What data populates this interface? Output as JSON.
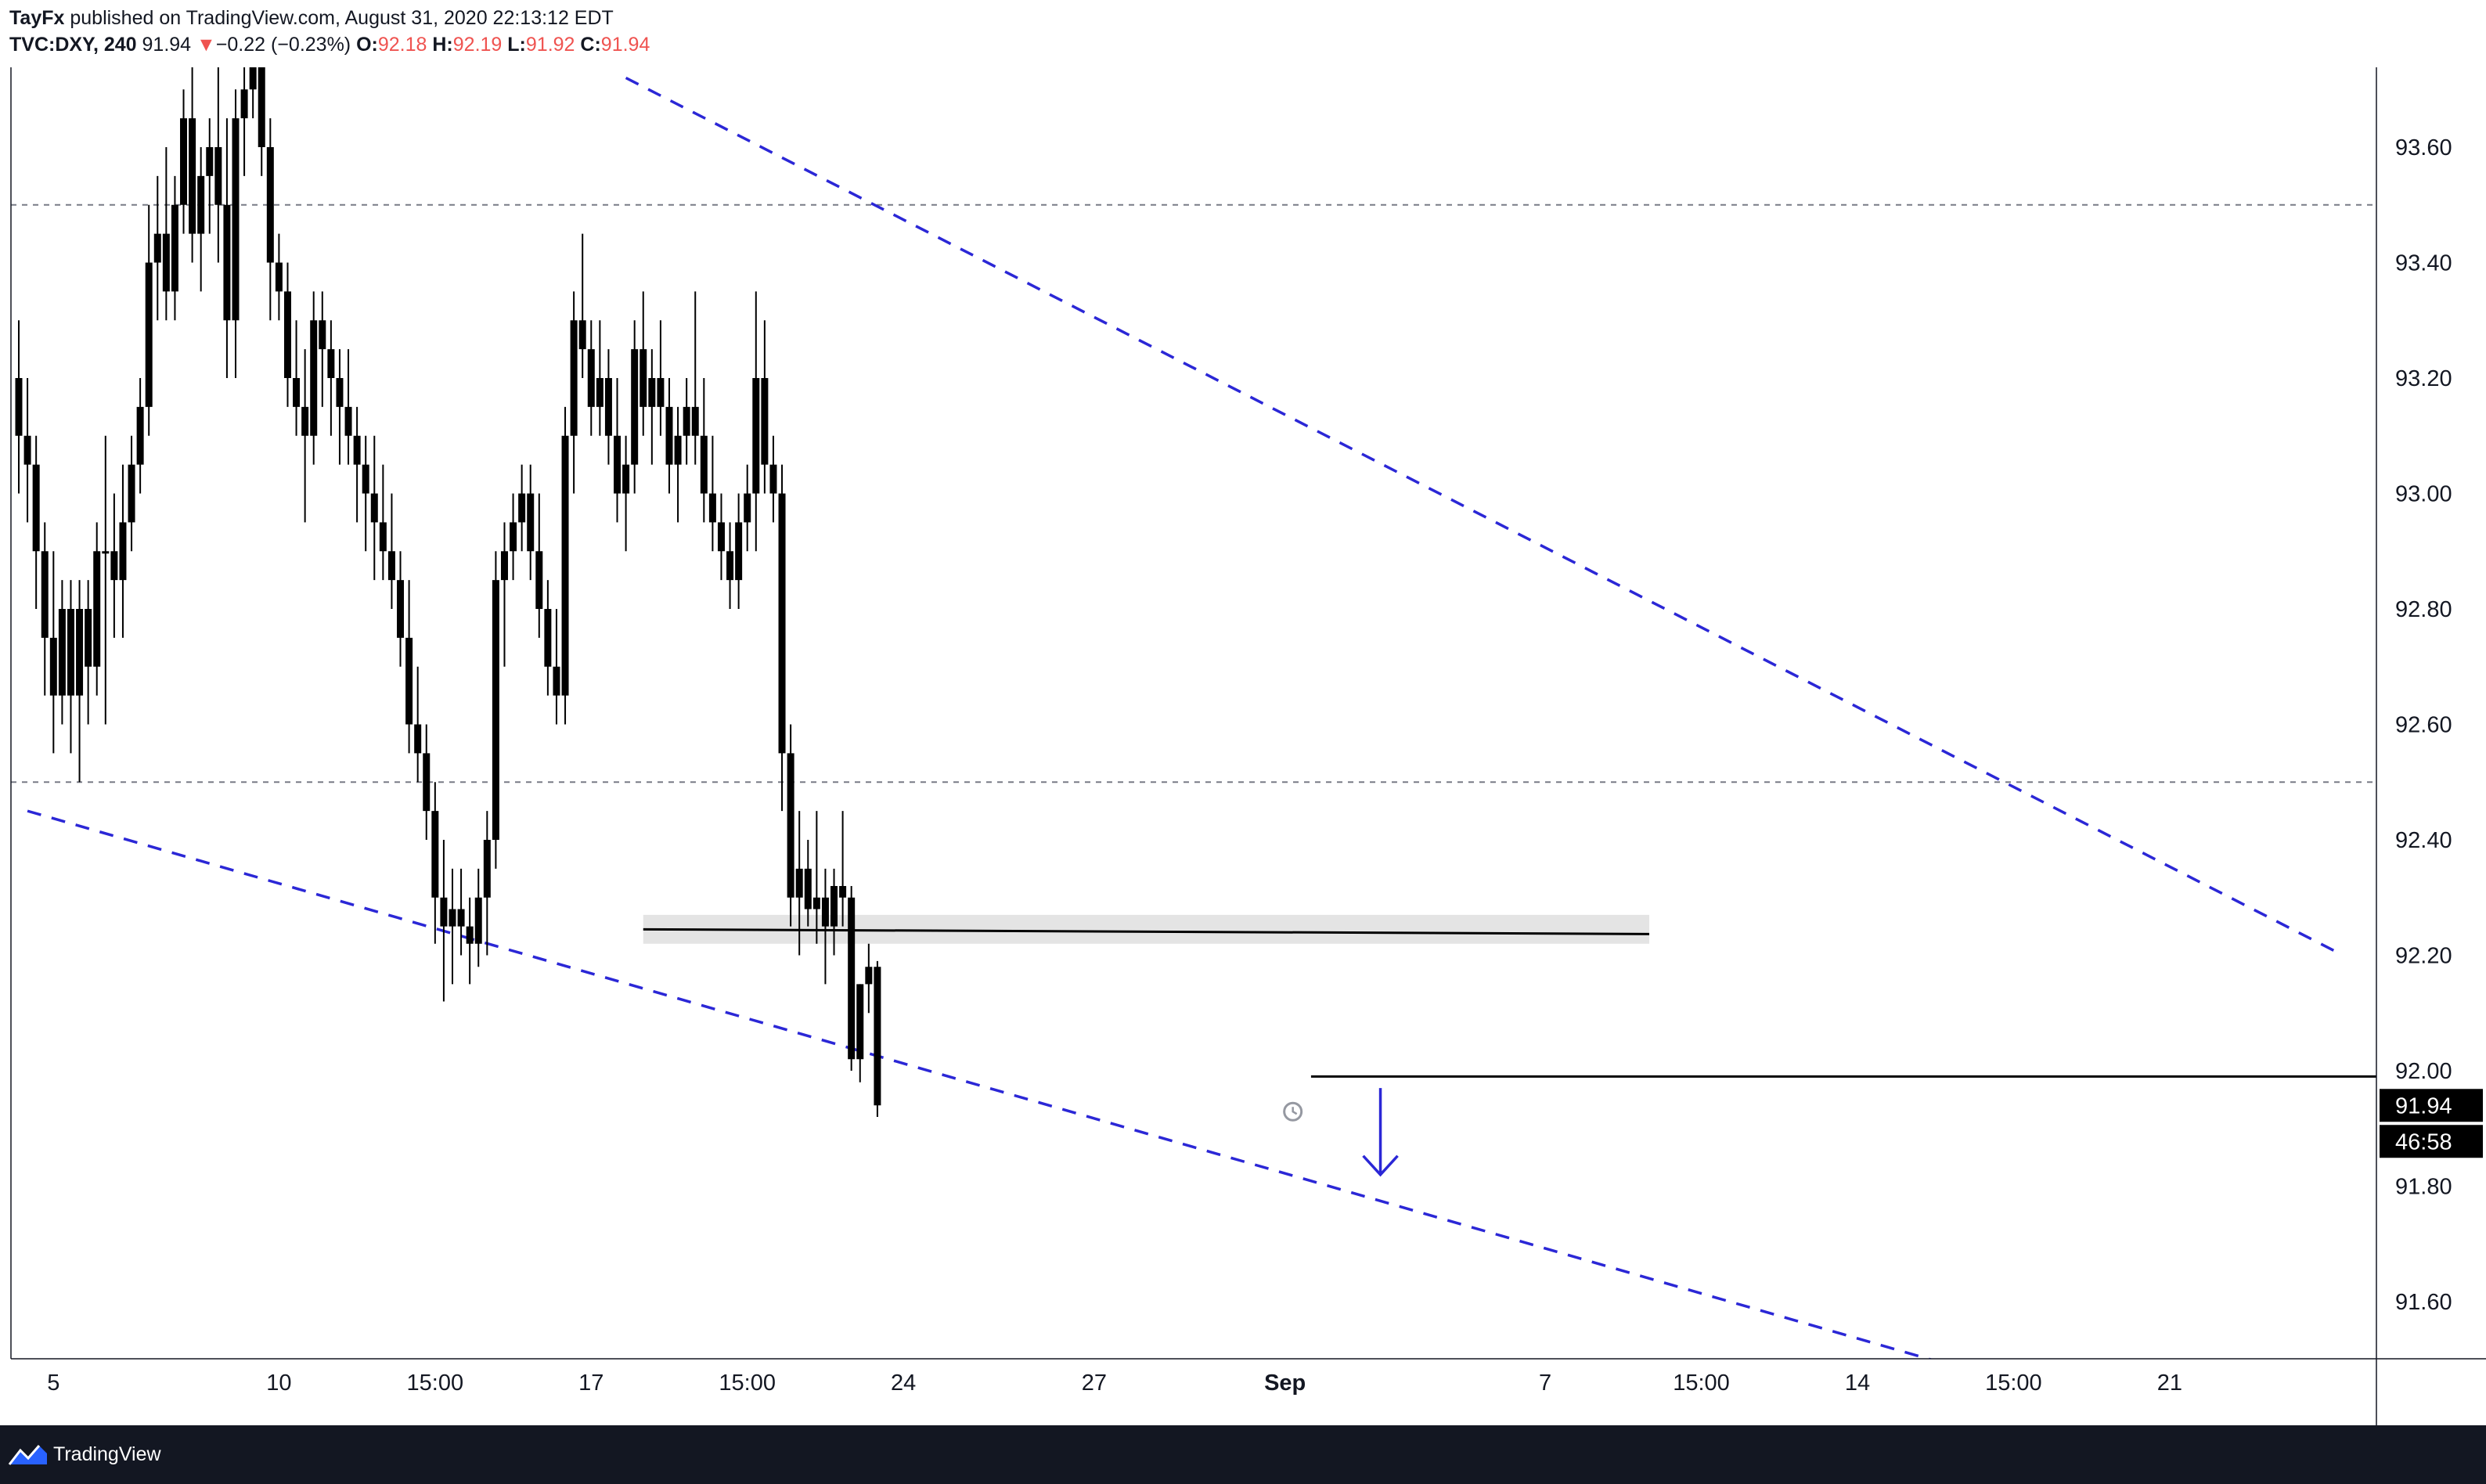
{
  "header": {
    "author": "TayFx",
    "published_text": " published on TradingView.com, August 31, 2020 22:13:12 EDT",
    "symbol": "TVC:DXY, 240",
    "last": "91.94",
    "change_arrow": "▼",
    "change": "−0.22 (−0.23%)",
    "o_label": "O:",
    "o_value": "92.18",
    "h_label": "H:",
    "h_value": "92.19",
    "l_label": "L:",
    "l_value": "91.92",
    "c_label": "C:",
    "c_value": "91.94"
  },
  "footer": {
    "brand": "TradingView",
    "logo_icon": "tradingview-logo-icon"
  },
  "colors": {
    "candle": "#000000",
    "trendline": "#2b27d6",
    "level_line": "#000000",
    "dashed_level": "#787b86",
    "zone_fill": "#e4e4e4",
    "price_tag_bg": "#000000",
    "price_tag_text": "#ffffff",
    "axis_text": "#131722",
    "header_red": "#ef5350",
    "footer_bg": "#131722"
  },
  "chart_data": {
    "type": "candlestick",
    "symbol": "TVC:DXY",
    "interval": "240",
    "ylim": [
      91.5,
      93.7
    ],
    "y_ticks": [
      "93.60",
      "93.40",
      "93.20",
      "93.00",
      "92.80",
      "92.60",
      "92.40",
      "92.20",
      "92.00",
      "91.80",
      "91.60"
    ],
    "x_ticks": [
      {
        "label": "5",
        "bar": 4
      },
      {
        "label": "10",
        "bar": 30
      },
      {
        "label": "15:00",
        "bar": 48
      },
      {
        "label": "17",
        "bar": 66
      },
      {
        "label": "15:00",
        "bar": 84
      },
      {
        "label": "24",
        "bar": 102
      },
      {
        "label": "27",
        "bar": 124
      },
      {
        "label": "Sep",
        "bar": 146
      },
      {
        "label": "7",
        "bar": 176
      },
      {
        "label": "15:00",
        "bar": 194
      },
      {
        "label": "14",
        "bar": 212
      },
      {
        "label": "15:00",
        "bar": 230
      },
      {
        "label": "21",
        "bar": 248
      }
    ],
    "bar_spacing_days": "4h",
    "ohlc": [
      [
        93.2,
        93.3,
        93.0,
        93.1
      ],
      [
        93.1,
        93.2,
        92.95,
        93.05
      ],
      [
        93.05,
        93.1,
        92.8,
        92.9
      ],
      [
        92.9,
        92.95,
        92.65,
        92.75
      ],
      [
        92.75,
        92.9,
        92.55,
        92.65
      ],
      [
        92.65,
        92.85,
        92.6,
        92.8
      ],
      [
        92.8,
        92.85,
        92.55,
        92.65
      ],
      [
        92.65,
        92.85,
        92.5,
        92.8
      ],
      [
        92.8,
        92.85,
        92.6,
        92.7
      ],
      [
        92.7,
        92.95,
        92.65,
        92.9
      ],
      [
        92.9,
        93.1,
        92.6,
        92.9
      ],
      [
        92.9,
        93.0,
        92.75,
        92.85
      ],
      [
        92.85,
        93.05,
        92.75,
        92.95
      ],
      [
        92.95,
        93.1,
        92.9,
        93.05
      ],
      [
        93.05,
        93.2,
        93.0,
        93.15
      ],
      [
        93.15,
        93.5,
        93.1,
        93.4
      ],
      [
        93.4,
        93.55,
        93.3,
        93.45
      ],
      [
        93.45,
        93.6,
        93.3,
        93.35
      ],
      [
        93.35,
        93.55,
        93.3,
        93.5
      ],
      [
        93.5,
        93.7,
        93.45,
        93.65
      ],
      [
        93.65,
        93.75,
        93.4,
        93.45
      ],
      [
        93.45,
        93.6,
        93.35,
        93.55
      ],
      [
        93.55,
        93.65,
        93.45,
        93.6
      ],
      [
        93.6,
        93.75,
        93.4,
        93.5
      ],
      [
        93.5,
        93.65,
        93.2,
        93.3
      ],
      [
        93.3,
        93.7,
        93.2,
        93.65
      ],
      [
        93.65,
        93.8,
        93.55,
        93.7
      ],
      [
        93.7,
        93.95,
        93.65,
        93.85
      ],
      [
        93.85,
        93.9,
        93.55,
        93.6
      ],
      [
        93.6,
        93.65,
        93.3,
        93.4
      ],
      [
        93.4,
        93.45,
        93.3,
        93.35
      ],
      [
        93.35,
        93.4,
        93.15,
        93.2
      ],
      [
        93.2,
        93.3,
        93.1,
        93.15
      ],
      [
        93.15,
        93.25,
        92.95,
        93.1
      ],
      [
        93.1,
        93.35,
        93.05,
        93.3
      ],
      [
        93.3,
        93.35,
        93.15,
        93.25
      ],
      [
        93.25,
        93.3,
        93.1,
        93.2
      ],
      [
        93.2,
        93.25,
        93.05,
        93.15
      ],
      [
        93.15,
        93.25,
        93.05,
        93.1
      ],
      [
        93.1,
        93.15,
        92.95,
        93.05
      ],
      [
        93.05,
        93.1,
        92.9,
        93.0
      ],
      [
        93.0,
        93.1,
        92.85,
        92.95
      ],
      [
        92.95,
        93.05,
        92.85,
        92.9
      ],
      [
        92.9,
        93.0,
        92.8,
        92.85
      ],
      [
        92.85,
        92.9,
        92.7,
        92.75
      ],
      [
        92.75,
        92.85,
        92.55,
        92.6
      ],
      [
        92.6,
        92.7,
        92.5,
        92.55
      ],
      [
        92.55,
        92.6,
        92.4,
        92.45
      ],
      [
        92.45,
        92.5,
        92.22,
        92.3
      ],
      [
        92.3,
        92.4,
        92.12,
        92.25
      ],
      [
        92.25,
        92.35,
        92.15,
        92.28
      ],
      [
        92.28,
        92.35,
        92.2,
        92.25
      ],
      [
        92.25,
        92.3,
        92.15,
        92.22
      ],
      [
        92.22,
        92.35,
        92.18,
        92.3
      ],
      [
        92.3,
        92.45,
        92.2,
        92.4
      ],
      [
        92.4,
        92.9,
        92.35,
        92.85
      ],
      [
        92.85,
        92.95,
        92.7,
        92.9
      ],
      [
        92.9,
        93.0,
        92.85,
        92.95
      ],
      [
        92.95,
        93.05,
        92.9,
        93.0
      ],
      [
        93.0,
        93.05,
        92.85,
        92.9
      ],
      [
        92.9,
        93.0,
        92.75,
        92.8
      ],
      [
        92.8,
        92.85,
        92.65,
        92.7
      ],
      [
        92.7,
        92.8,
        92.6,
        92.65
      ],
      [
        92.65,
        93.15,
        92.6,
        93.1
      ],
      [
        93.1,
        93.35,
        93.0,
        93.3
      ],
      [
        93.3,
        93.45,
        93.2,
        93.25
      ],
      [
        93.25,
        93.3,
        93.1,
        93.15
      ],
      [
        93.15,
        93.3,
        93.1,
        93.2
      ],
      [
        93.2,
        93.25,
        93.05,
        93.1
      ],
      [
        93.1,
        93.2,
        92.95,
        93.0
      ],
      [
        93.0,
        93.1,
        92.9,
        93.05
      ],
      [
        93.05,
        93.3,
        93.0,
        93.25
      ],
      [
        93.25,
        93.35,
        93.1,
        93.15
      ],
      [
        93.15,
        93.25,
        93.05,
        93.2
      ],
      [
        93.2,
        93.3,
        93.1,
        93.15
      ],
      [
        93.15,
        93.2,
        93.0,
        93.05
      ],
      [
        93.05,
        93.15,
        92.95,
        93.1
      ],
      [
        93.1,
        93.2,
        93.05,
        93.15
      ],
      [
        93.15,
        93.35,
        93.05,
        93.1
      ],
      [
        93.1,
        93.2,
        92.95,
        93.0
      ],
      [
        93.0,
        93.1,
        92.9,
        92.95
      ],
      [
        92.95,
        93.0,
        92.85,
        92.9
      ],
      [
        92.9,
        92.95,
        92.8,
        92.85
      ],
      [
        92.85,
        93.0,
        92.8,
        92.95
      ],
      [
        92.95,
        93.05,
        92.9,
        93.0
      ],
      [
        93.0,
        93.35,
        92.9,
        93.2
      ],
      [
        93.2,
        93.3,
        93.0,
        93.05
      ],
      [
        93.05,
        93.1,
        92.95,
        93.0
      ],
      [
        93.0,
        93.05,
        92.45,
        92.55
      ],
      [
        92.55,
        92.6,
        92.25,
        92.3
      ],
      [
        92.3,
        92.45,
        92.2,
        92.35
      ],
      [
        92.35,
        92.4,
        92.25,
        92.28
      ],
      [
        92.28,
        92.45,
        92.22,
        92.3
      ],
      [
        92.3,
        92.35,
        92.15,
        92.25
      ],
      [
        92.25,
        92.35,
        92.2,
        92.32
      ],
      [
        92.32,
        92.45,
        92.25,
        92.3
      ],
      [
        92.3,
        92.32,
        92.0,
        92.02
      ],
      [
        92.02,
        92.15,
        91.98,
        92.15
      ],
      [
        92.15,
        92.22,
        92.1,
        92.18
      ],
      [
        92.18,
        92.19,
        91.92,
        91.94
      ]
    ],
    "trendlines": [
      {
        "name": "upper-channel-line",
        "style": "dashed",
        "from": {
          "bar": 70,
          "price": 93.72
        },
        "to": {
          "bar": 268,
          "price": 92.2
        }
      },
      {
        "name": "lower-channel-line",
        "style": "dashed",
        "from": {
          "bar": 1,
          "price": 92.45
        },
        "to": {
          "bar": 225,
          "price": 91.48
        }
      }
    ],
    "horizontal_levels": [
      {
        "name": "dashed-level-93-50",
        "price": 93.5,
        "style": "dashed"
      },
      {
        "name": "dashed-level-92-50",
        "price": 92.5,
        "style": "dashed"
      },
      {
        "name": "dashed-level-91-50",
        "price": 91.5,
        "style": "dashed"
      },
      {
        "name": "support-zone",
        "price_low": 92.22,
        "price_high": 92.27,
        "from_bar": 72,
        "to_bar": 188,
        "line_price": 92.245
      },
      {
        "name": "current-level-line",
        "price": 91.99,
        "from_bar": 149,
        "to_bar": 272,
        "style": "solid"
      }
    ],
    "arrow": {
      "bar": 157,
      "from_price": 91.97,
      "to_price": 91.82,
      "direction": "down"
    },
    "alarm_icon": {
      "bar": 146,
      "price": 91.94
    },
    "price_tags": {
      "last_price": "91.94",
      "countdown": "46:58"
    }
  }
}
